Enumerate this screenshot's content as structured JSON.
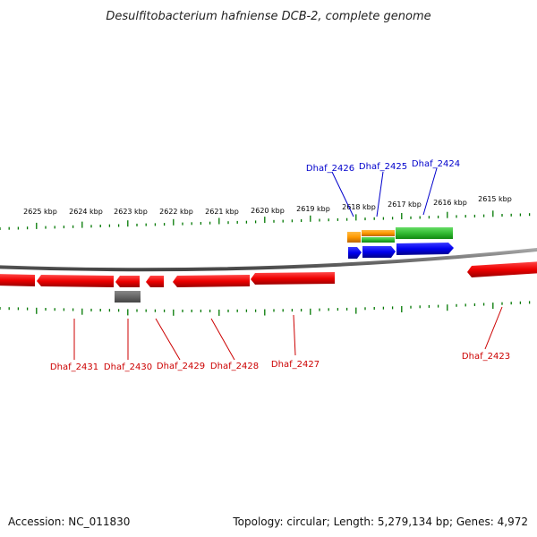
{
  "title": "Desulfitobacterium hafniense DCB-2, complete genome",
  "footer": {
    "accession": "Accession: NC_011830",
    "topology": "Topology: circular; Length: 5,279,134 bp; Genes: 4,972"
  },
  "kbp_labels": [
    "2625 kbp",
    "2624 kbp",
    "2623 kbp",
    "2622 kbp",
    "2621 kbp",
    "2620 kbp",
    "2619 kbp",
    "2618 kbp",
    "2617 kbp",
    "2616 kbp",
    "2615 kbp"
  ],
  "genes_top": [
    {
      "id": "Dhaf_2426",
      "color": "#0000cc"
    },
    {
      "id": "Dhaf_2425",
      "color": "#0000cc"
    },
    {
      "id": "Dhaf_2424",
      "color": "#0000cc"
    }
  ],
  "genes_bottom": [
    {
      "id": "Dhaf_2431",
      "color": "#cc0000"
    },
    {
      "id": "Dhaf_2430",
      "color": "#cc0000"
    },
    {
      "id": "Dhaf_2429",
      "color": "#cc0000"
    },
    {
      "id": "Dhaf_2428",
      "color": "#cc0000"
    },
    {
      "id": "Dhaf_2427",
      "color": "#cc0000"
    },
    {
      "id": "Dhaf_2423",
      "color": "#cc0000"
    }
  ],
  "colors": {
    "gene_reverse": "#ff0000",
    "gene_forward": "#0000ee",
    "feature_green": "#33bb33",
    "feature_orange": "#ff9900",
    "feature_grey": "#666666",
    "tick": "#007700",
    "backbone": "#777777"
  }
}
